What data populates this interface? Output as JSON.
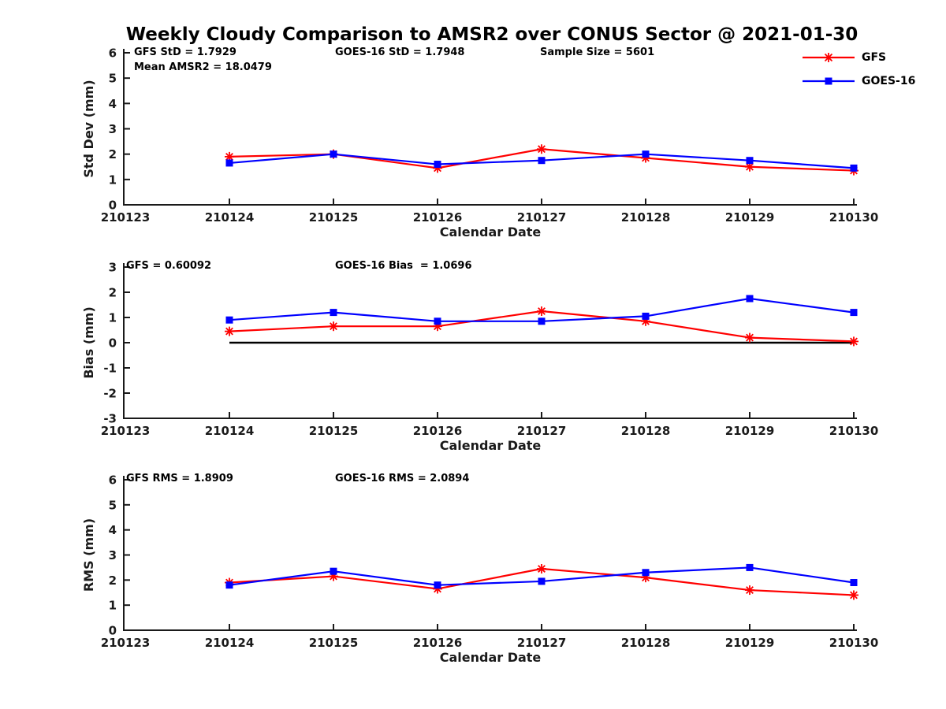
{
  "title": "Weekly Cloudy Comparison to AMSR2 over CONUS Sector @ 2021-01-30",
  "colors": {
    "gfs": "#ff0000",
    "goes": "#0000ff",
    "axis": "#1a1a1a",
    "zero_line": "#000000"
  },
  "legend": {
    "position": "top-right-outside",
    "items": [
      {
        "label": "GFS",
        "marker": "asterisk-marker",
        "color": "#ff0000"
      },
      {
        "label": "GOES-16",
        "marker": "square-marker",
        "color": "#0000ff"
      }
    ]
  },
  "chart_data": [
    {
      "type": "line",
      "name": "stddev",
      "xlabel": "Calendar Date",
      "ylabel": "Std Dev (mm)",
      "ylim": [
        0,
        6
      ],
      "ytick_step": 1,
      "grid": false,
      "categories": [
        "210123",
        "210124",
        "210125",
        "210126",
        "210127",
        "210128",
        "210129",
        "210130"
      ],
      "x": [
        "210124",
        "210125",
        "210126",
        "210127",
        "210128",
        "210129",
        "210130"
      ],
      "series": [
        {
          "name": "GFS",
          "values": [
            1.9,
            2.0,
            1.45,
            2.2,
            1.85,
            1.5,
            1.35
          ]
        },
        {
          "name": "GOES-16",
          "values": [
            1.65,
            2.0,
            1.6,
            1.75,
            2.0,
            1.75,
            1.45
          ]
        }
      ],
      "annotations": [
        "GFS StD = 1.7929",
        "Mean AMSR2 = 18.0479",
        "GOES-16 StD = 1.7948",
        "Sample Size = 5601"
      ],
      "zero_line": false
    },
    {
      "type": "line",
      "name": "bias",
      "xlabel": "Calendar Date",
      "ylabel": "Bias (mm)",
      "ylim": [
        -3,
        3
      ],
      "ytick_step": 1,
      "grid": false,
      "categories": [
        "210123",
        "210124",
        "210125",
        "210126",
        "210127",
        "210128",
        "210129",
        "210130"
      ],
      "x": [
        "210124",
        "210125",
        "210126",
        "210127",
        "210128",
        "210129",
        "210130"
      ],
      "series": [
        {
          "name": "GFS",
          "values": [
            0.45,
            0.65,
            0.65,
            1.25,
            0.85,
            0.2,
            0.05
          ]
        },
        {
          "name": "GOES-16",
          "values": [
            0.9,
            1.2,
            0.85,
            0.85,
            1.05,
            1.75,
            1.2
          ]
        }
      ],
      "annotations": [
        "GFS = 0.60092",
        "GOES-16 Bias  = 1.0696"
      ],
      "zero_line": true
    },
    {
      "type": "line",
      "name": "rms",
      "xlabel": "Calendar Date",
      "ylabel": "RMS (mm)",
      "ylim": [
        0,
        6
      ],
      "ytick_step": 1,
      "grid": false,
      "categories": [
        "210123",
        "210124",
        "210125",
        "210126",
        "210127",
        "210128",
        "210129",
        "210130"
      ],
      "x": [
        "210124",
        "210125",
        "210126",
        "210127",
        "210128",
        "210129",
        "210130"
      ],
      "series": [
        {
          "name": "GFS",
          "values": [
            1.9,
            2.15,
            1.65,
            2.45,
            2.1,
            1.6,
            1.4
          ]
        },
        {
          "name": "GOES-16",
          "values": [
            1.8,
            2.35,
            1.8,
            1.95,
            2.3,
            2.5,
            1.9
          ]
        }
      ],
      "annotations": [
        "GFS RMS = 1.8909",
        "GOES-16 RMS = 2.0894"
      ],
      "zero_line": false
    }
  ]
}
